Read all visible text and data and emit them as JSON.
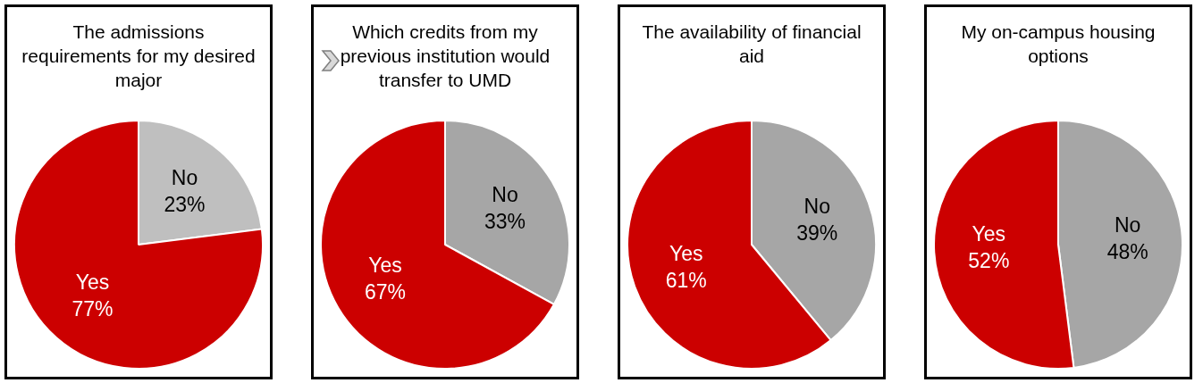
{
  "chart_data": [
    {
      "type": "pie",
      "title": "The admissions requirements for my desired major",
      "categories": [
        "No",
        "Yes"
      ],
      "values": [
        23,
        77
      ],
      "colors": [
        "#bfbfbf",
        "#cc0000"
      ],
      "value_labels": [
        "23%",
        "77%"
      ]
    },
    {
      "type": "pie",
      "title": "Which credits from my previous institution would transfer to UMD",
      "categories": [
        "No",
        "Yes"
      ],
      "values": [
        33,
        67
      ],
      "colors": [
        "#a6a6a6",
        "#cc0000"
      ],
      "value_labels": [
        "33%",
        "67%"
      ]
    },
    {
      "type": "pie",
      "title": "The availability of financial aid",
      "categories": [
        "No",
        "Yes"
      ],
      "values": [
        39,
        61
      ],
      "colors": [
        "#a6a6a6",
        "#cc0000"
      ],
      "value_labels": [
        "39%",
        "61%"
      ]
    },
    {
      "type": "pie",
      "title": "My on-campus housing options",
      "categories": [
        "No",
        "Yes"
      ],
      "values": [
        48,
        52
      ],
      "colors": [
        "#a6a6a6",
        "#cc0000"
      ],
      "value_labels": [
        "48%",
        "52%"
      ]
    }
  ]
}
